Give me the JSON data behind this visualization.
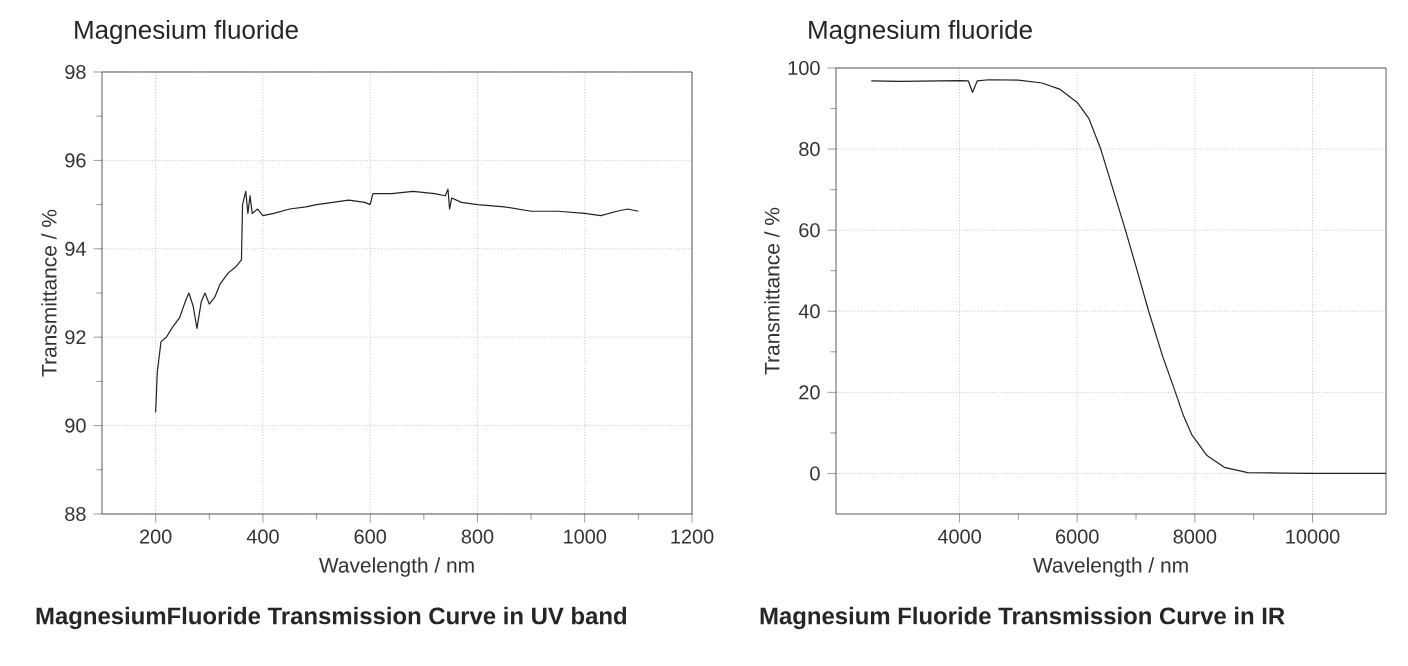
{
  "chart_data": [
    {
      "type": "line",
      "title": "MagnesiumFluoride Transmission Curve in UV band",
      "subtitle": "Magnesium fluoride",
      "xlabel": "Wavelength / nm",
      "ylabel": "Transmittance / %",
      "xlim": [
        100,
        1200
      ],
      "ylim": [
        88,
        98
      ],
      "xticks": [
        200,
        400,
        600,
        800,
        1000,
        1200
      ],
      "yticks": [
        88,
        90,
        92,
        94,
        96,
        98
      ],
      "grid": true,
      "color": "#222222",
      "x": [
        200,
        203,
        210,
        220,
        230,
        245,
        255,
        262,
        270,
        277,
        285,
        292,
        300,
        310,
        320,
        335,
        350,
        360,
        362,
        368,
        372,
        376,
        380,
        390,
        400,
        420,
        450,
        480,
        500,
        530,
        560,
        590,
        600,
        605,
        640,
        680,
        720,
        740,
        745,
        748,
        752,
        770,
        800,
        850,
        900,
        950,
        1000,
        1030,
        1060,
        1080,
        1100
      ],
      "values": [
        90.3,
        91.2,
        91.9,
        92.0,
        92.2,
        92.45,
        92.8,
        93.0,
        92.7,
        92.2,
        92.8,
        93.0,
        92.75,
        92.9,
        93.2,
        93.45,
        93.6,
        93.75,
        95.0,
        95.3,
        94.8,
        95.2,
        94.8,
        94.9,
        94.75,
        94.8,
        94.9,
        94.95,
        95.0,
        95.05,
        95.1,
        95.05,
        95.0,
        95.25,
        95.25,
        95.3,
        95.25,
        95.2,
        95.35,
        94.9,
        95.15,
        95.05,
        95.0,
        94.95,
        94.85,
        94.85,
        94.8,
        94.75,
        94.85,
        94.9,
        94.85
      ]
    },
    {
      "type": "line",
      "title": "Magnesium Fluoride Transmission Curve in IR",
      "subtitle": "Magnesium fluoride",
      "xlabel": "Wavelength / nm",
      "ylabel": "Transmittance / %",
      "xlim": [
        1900,
        11250
      ],
      "ylim": [
        -10,
        100
      ],
      "xticks": [
        4000,
        6000,
        8000,
        10000
      ],
      "yticks": [
        0,
        20,
        40,
        60,
        80,
        100
      ],
      "grid": true,
      "color": "#222222",
      "x": [
        2500,
        3000,
        4000,
        4150,
        4220,
        4300,
        4500,
        5000,
        5400,
        5700,
        6000,
        6200,
        6400,
        6600,
        6820,
        7000,
        7215,
        7450,
        7670,
        7800,
        7950,
        8200,
        8500,
        8900,
        9500,
        10000,
        11250
      ],
      "values": [
        96.8,
        96.7,
        96.9,
        96.8,
        94,
        96.8,
        97.1,
        97,
        96.3,
        94.8,
        91.5,
        87.5,
        80,
        70.5,
        60,
        51,
        40,
        29,
        20,
        14.5,
        9.5,
        4.5,
        1.5,
        0.2,
        0.1,
        0,
        0
      ]
    }
  ]
}
